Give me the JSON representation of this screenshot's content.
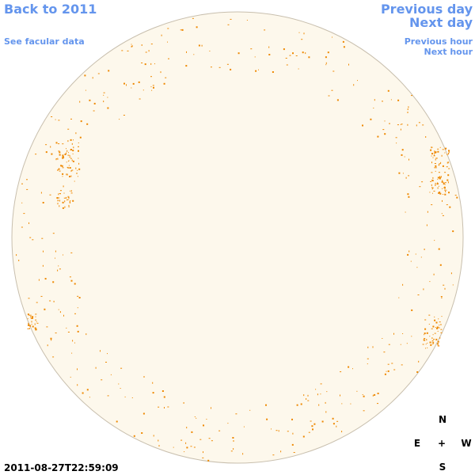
{
  "nav": {
    "back": "Back to 2011",
    "facular": "See facular data",
    "previous_day": "Previous day",
    "next_day": "Next day",
    "previous_hour": "Previous hour",
    "next_hour": "Next hour"
  },
  "timestamp": "2011-08-27T22:59:09",
  "compass": {
    "north": "N",
    "east": "E",
    "center": "+",
    "west": "W",
    "south": "S"
  }
}
